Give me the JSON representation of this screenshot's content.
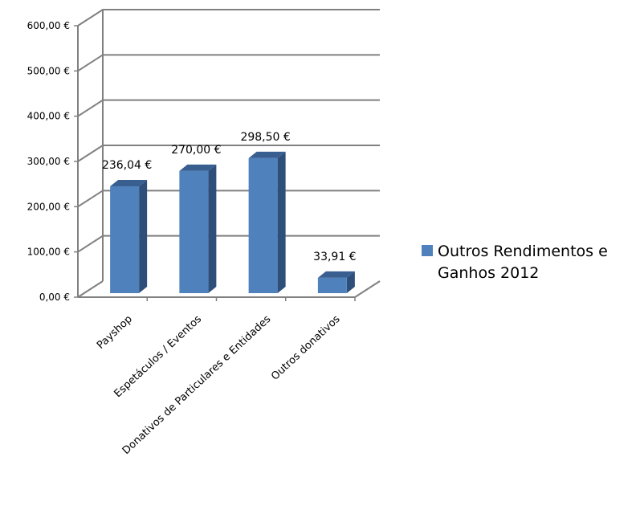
{
  "chart_data": {
    "type": "bar",
    "title": "",
    "xlabel": "",
    "ylabel": "",
    "categories": [
      "Payshop",
      "Espetáculos / Eventos",
      "Donativos de Particulares e Entidades",
      "Outros donativos"
    ],
    "series": [
      {
        "name": "Outros Rendimentos e Ganhos 2012",
        "values": [
          236.04,
          270.0,
          298.5,
          33.91
        ],
        "labels": [
          "236,04 €",
          "270,00 €",
          "298,50 €",
          "33,91 €"
        ]
      }
    ],
    "ylim": [
      0,
      600
    ],
    "yticks": [
      "0,00 €",
      "100,00 €",
      "200,00 €",
      "300,00 €",
      "400,00 €",
      "500,00 €",
      "600,00 €"
    ],
    "grid": true,
    "legend_position": "right",
    "colors": {
      "bar_front": "#4f81bd",
      "bar_side": "#2e4f7a",
      "bar_top": "#395f91",
      "grid": "#808080"
    }
  }
}
